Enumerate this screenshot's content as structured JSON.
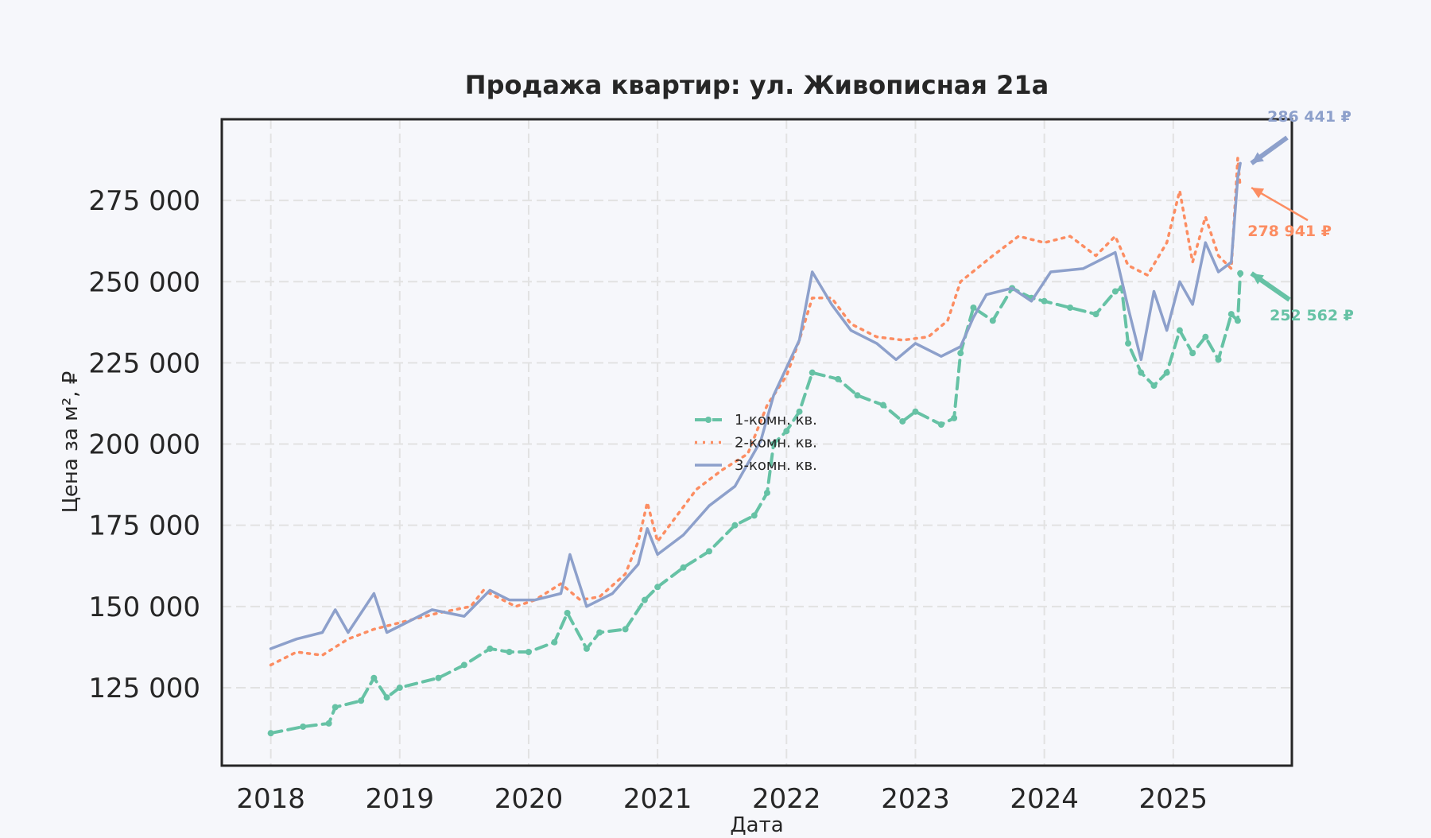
{
  "chart_data": {
    "type": "line",
    "title": "Продажа квартир: ул. Живописная 21а",
    "xlabel": "Дата",
    "ylabel": "Цена за м², ₽",
    "x_ticks": [
      "2018",
      "2019",
      "2020",
      "2021",
      "2022",
      "2023",
      "2024",
      "2025"
    ],
    "x_range": [
      2017.62,
      2025.92
    ],
    "y_ticks": [
      125000,
      150000,
      175000,
      200000,
      225000,
      250000,
      275000
    ],
    "y_tick_labels": [
      "125 000",
      "150 000",
      "175 000",
      "200 000",
      "225 000",
      "250 000",
      "275 000"
    ],
    "ylim": [
      101000,
      300000
    ],
    "grid": true,
    "legend_position": "center",
    "series": [
      {
        "name": "1-комн. кв.",
        "color": "#66c2a5",
        "style": "dashed-markers",
        "end_label": "252 562 ₽",
        "points": [
          [
            2018.0,
            111000
          ],
          [
            2018.25,
            113000
          ],
          [
            2018.45,
            114000
          ],
          [
            2018.5,
            119000
          ],
          [
            2018.7,
            121000
          ],
          [
            2018.8,
            128000
          ],
          [
            2018.9,
            122000
          ],
          [
            2019.0,
            125000
          ],
          [
            2019.3,
            128000
          ],
          [
            2019.5,
            132000
          ],
          [
            2019.7,
            137000
          ],
          [
            2019.85,
            136000
          ],
          [
            2020.0,
            136000
          ],
          [
            2020.2,
            139000
          ],
          [
            2020.3,
            148000
          ],
          [
            2020.45,
            137000
          ],
          [
            2020.55,
            142000
          ],
          [
            2020.75,
            143000
          ],
          [
            2020.9,
            152000
          ],
          [
            2021.0,
            156000
          ],
          [
            2021.2,
            162000
          ],
          [
            2021.4,
            167000
          ],
          [
            2021.6,
            175000
          ],
          [
            2021.75,
            178000
          ],
          [
            2021.85,
            185000
          ],
          [
            2021.9,
            200000
          ],
          [
            2022.0,
            204000
          ],
          [
            2022.1,
            210000
          ],
          [
            2022.2,
            222000
          ],
          [
            2022.4,
            220000
          ],
          [
            2022.55,
            215000
          ],
          [
            2022.75,
            212000
          ],
          [
            2022.9,
            207000
          ],
          [
            2023.0,
            210000
          ],
          [
            2023.2,
            206000
          ],
          [
            2023.3,
            208000
          ],
          [
            2023.35,
            228000
          ],
          [
            2023.45,
            242000
          ],
          [
            2023.6,
            238000
          ],
          [
            2023.75,
            248000
          ],
          [
            2023.9,
            245000
          ],
          [
            2024.0,
            244000
          ],
          [
            2024.2,
            242000
          ],
          [
            2024.4,
            240000
          ],
          [
            2024.55,
            247000
          ],
          [
            2024.6,
            248000
          ],
          [
            2024.65,
            231000
          ],
          [
            2024.75,
            222000
          ],
          [
            2024.85,
            218000
          ],
          [
            2024.95,
            222000
          ],
          [
            2025.05,
            235000
          ],
          [
            2025.15,
            228000
          ],
          [
            2025.25,
            233000
          ],
          [
            2025.35,
            226000
          ],
          [
            2025.45,
            240000
          ],
          [
            2025.5,
            238000
          ],
          [
            2025.52,
            252562
          ]
        ]
      },
      {
        "name": "2-комн. кв.",
        "color": "#fc8d62",
        "style": "dotted",
        "end_label": "278 941 ₽",
        "points": [
          [
            2018.0,
            132000
          ],
          [
            2018.2,
            136000
          ],
          [
            2018.4,
            135000
          ],
          [
            2018.6,
            140000
          ],
          [
            2018.8,
            143000
          ],
          [
            2019.0,
            145000
          ],
          [
            2019.3,
            148000
          ],
          [
            2019.55,
            150000
          ],
          [
            2019.65,
            155000
          ],
          [
            2019.9,
            150000
          ],
          [
            2020.05,
            152000
          ],
          [
            2020.25,
            157000
          ],
          [
            2020.4,
            152000
          ],
          [
            2020.55,
            153000
          ],
          [
            2020.75,
            160000
          ],
          [
            2020.85,
            170000
          ],
          [
            2020.92,
            182000
          ],
          [
            2021.0,
            170000
          ],
          [
            2021.15,
            178000
          ],
          [
            2021.3,
            186000
          ],
          [
            2021.5,
            192000
          ],
          [
            2021.7,
            197000
          ],
          [
            2021.85,
            212000
          ],
          [
            2022.0,
            221000
          ],
          [
            2022.1,
            232000
          ],
          [
            2022.2,
            245000
          ],
          [
            2022.35,
            245000
          ],
          [
            2022.5,
            237000
          ],
          [
            2022.7,
            233000
          ],
          [
            2022.9,
            232000
          ],
          [
            2023.1,
            233000
          ],
          [
            2023.25,
            238000
          ],
          [
            2023.35,
            250000
          ],
          [
            2023.6,
            258000
          ],
          [
            2023.8,
            264000
          ],
          [
            2024.0,
            262000
          ],
          [
            2024.2,
            264000
          ],
          [
            2024.4,
            258000
          ],
          [
            2024.55,
            264000
          ],
          [
            2024.65,
            255000
          ],
          [
            2024.8,
            252000
          ],
          [
            2024.95,
            262000
          ],
          [
            2025.05,
            278000
          ],
          [
            2025.15,
            256000
          ],
          [
            2025.25,
            270000
          ],
          [
            2025.35,
            258000
          ],
          [
            2025.45,
            254000
          ],
          [
            2025.5,
            288000
          ],
          [
            2025.52,
            278941
          ]
        ]
      },
      {
        "name": "3-комн. кв.",
        "color": "#8da0cb",
        "style": "solid",
        "end_label": "286 441 ₽",
        "points": [
          [
            2018.0,
            137000
          ],
          [
            2018.2,
            140000
          ],
          [
            2018.4,
            142000
          ],
          [
            2018.5,
            149000
          ],
          [
            2018.6,
            142000
          ],
          [
            2018.8,
            154000
          ],
          [
            2018.9,
            142000
          ],
          [
            2019.1,
            146000
          ],
          [
            2019.25,
            149000
          ],
          [
            2019.5,
            147000
          ],
          [
            2019.7,
            155000
          ],
          [
            2019.85,
            152000
          ],
          [
            2020.05,
            152000
          ],
          [
            2020.25,
            154000
          ],
          [
            2020.32,
            166000
          ],
          [
            2020.45,
            150000
          ],
          [
            2020.65,
            154000
          ],
          [
            2020.85,
            163000
          ],
          [
            2020.92,
            174000
          ],
          [
            2021.0,
            166000
          ],
          [
            2021.2,
            172000
          ],
          [
            2021.4,
            181000
          ],
          [
            2021.6,
            187000
          ],
          [
            2021.8,
            201000
          ],
          [
            2021.9,
            215000
          ],
          [
            2022.1,
            232000
          ],
          [
            2022.2,
            253000
          ],
          [
            2022.35,
            243000
          ],
          [
            2022.5,
            235000
          ],
          [
            2022.7,
            231000
          ],
          [
            2022.85,
            226000
          ],
          [
            2023.0,
            231000
          ],
          [
            2023.2,
            227000
          ],
          [
            2023.35,
            230000
          ],
          [
            2023.45,
            239000
          ],
          [
            2023.55,
            246000
          ],
          [
            2023.75,
            248000
          ],
          [
            2023.9,
            244000
          ],
          [
            2024.05,
            253000
          ],
          [
            2024.3,
            254000
          ],
          [
            2024.45,
            257000
          ],
          [
            2024.55,
            259000
          ],
          [
            2024.65,
            242000
          ],
          [
            2024.75,
            226000
          ],
          [
            2024.85,
            247000
          ],
          [
            2024.95,
            235000
          ],
          [
            2025.05,
            250000
          ],
          [
            2025.15,
            243000
          ],
          [
            2025.25,
            262000
          ],
          [
            2025.35,
            253000
          ],
          [
            2025.45,
            256000
          ],
          [
            2025.5,
            282000
          ],
          [
            2025.52,
            286441
          ]
        ]
      }
    ]
  }
}
